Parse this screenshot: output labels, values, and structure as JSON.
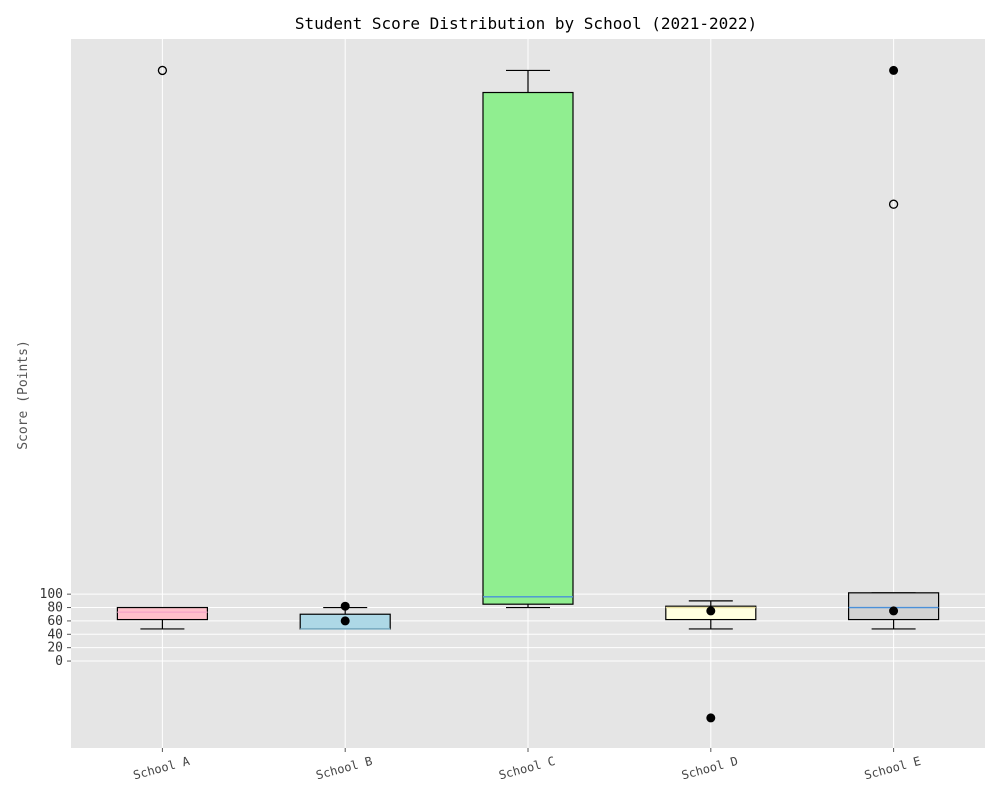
{
  "chart_data": {
    "type": "boxplot",
    "title": "Student Score Distribution by School (2021-2022)",
    "xlabel": "",
    "ylabel": "Score (Points)",
    "ylim": [
      -130,
      930
    ],
    "yticks": [
      0,
      20,
      40,
      60,
      80,
      100
    ],
    "grid": true,
    "legend": "none",
    "categories": [
      "School A",
      "School B",
      "School C",
      "School D",
      "School E"
    ],
    "boxes": [
      {
        "name": "School A",
        "whislo": 48,
        "q1": 62,
        "med": 73,
        "q3": 80,
        "whishi": 80,
        "fill": "#ffc0cb",
        "median_color": "#f4a6c8",
        "outliers_open": [
          883
        ],
        "points_filled": []
      },
      {
        "name": "School B",
        "whislo": 48,
        "q1": 48,
        "med": 48,
        "q3": 70,
        "whishi": 80,
        "fill": "#add8e6",
        "median_color": "#7fb8d0",
        "outliers_open": [],
        "points_filled": [
          82,
          60
        ]
      },
      {
        "name": "School C",
        "whislo": 80,
        "q1": 85,
        "med": 96,
        "q3": 850,
        "whishi": 883,
        "fill": "#90ee90",
        "median_color": "#4a90d9",
        "outliers_open": [],
        "points_filled": []
      },
      {
        "name": "School D",
        "whislo": 48,
        "q1": 62,
        "med": 80,
        "q3": 82,
        "whishi": 90,
        "fill": "#ffffe0",
        "median_color": "#e8e0a0",
        "outliers_open": [],
        "points_filled": [
          75,
          -85
        ]
      },
      {
        "name": "School E",
        "whislo": 48,
        "q1": 62,
        "med": 80,
        "q3": 102,
        "whishi": 102,
        "fill": "#d3d3d3",
        "median_color": "#4a90d9",
        "outliers_open": [
          683
        ],
        "points_filled": [
          883,
          75
        ]
      }
    ]
  }
}
